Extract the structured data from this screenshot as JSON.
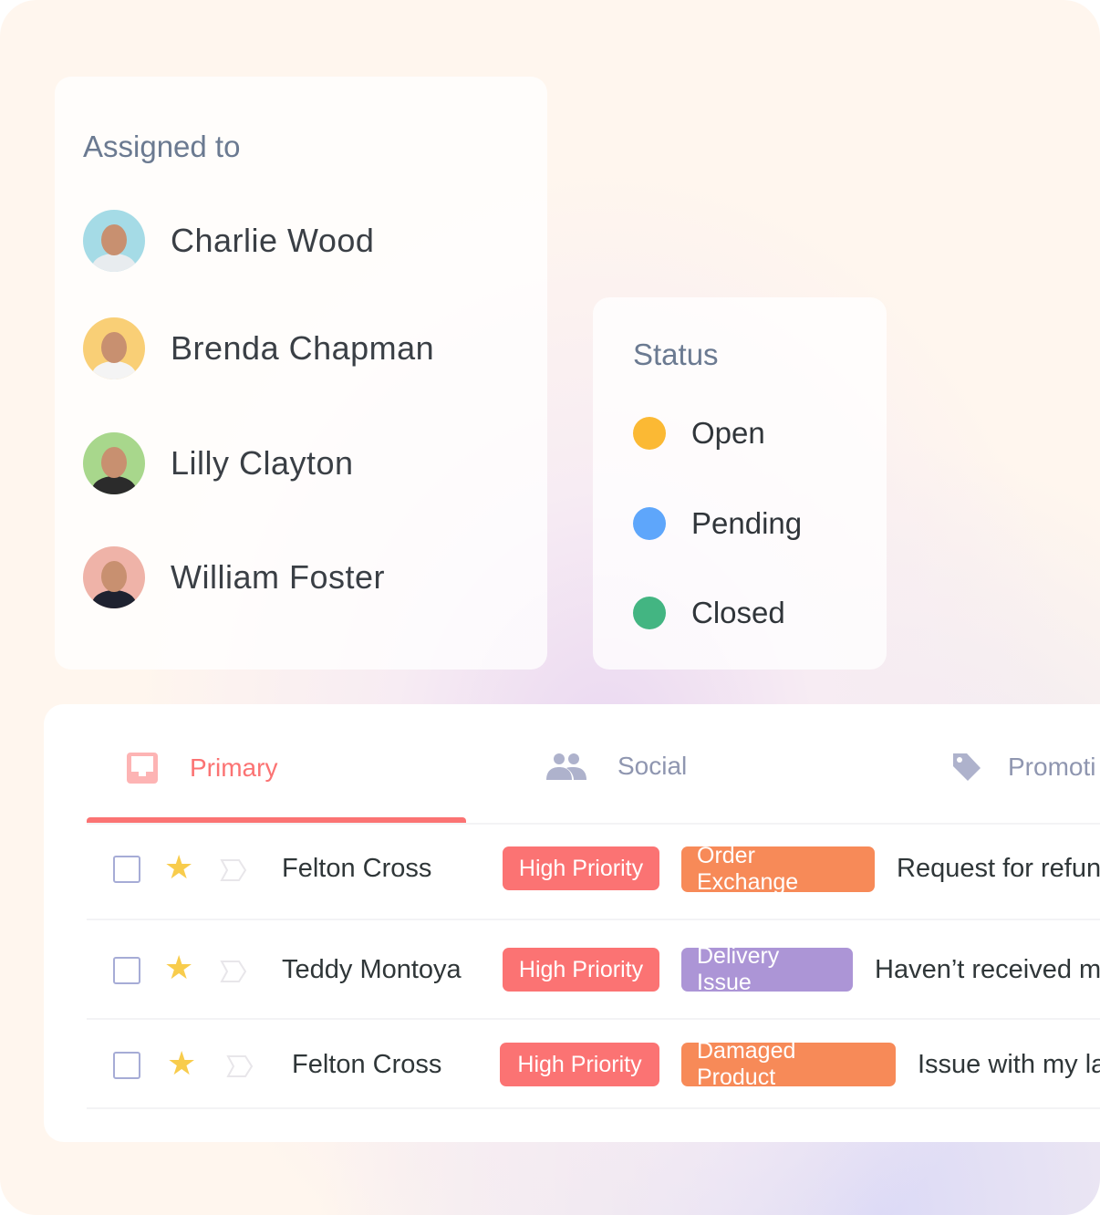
{
  "assigned": {
    "title": "Assigned to",
    "people": [
      {
        "name": "Charlie Wood",
        "bg": "#a5dbe6",
        "shirt": "#e8ecef"
      },
      {
        "name": "Brenda Chapman",
        "bg": "#f9cf76",
        "shirt": "#f4f4f4"
      },
      {
        "name": "Lilly Clayton",
        "bg": "#a8d78c",
        "shirt": "#2b2b2b"
      },
      {
        "name": "William Foster",
        "bg": "#efb3a8",
        "shirt": "#1e2230"
      }
    ]
  },
  "status": {
    "title": "Status",
    "items": [
      {
        "label": "Open",
        "color": "#fbb934"
      },
      {
        "label": "Pending",
        "color": "#5ea6fb"
      },
      {
        "label": "Closed",
        "color": "#43b582"
      }
    ]
  },
  "tabs": [
    {
      "label": "Primary",
      "icon": "inbox-icon",
      "active": true
    },
    {
      "label": "Social",
      "icon": "people-icon"
    },
    {
      "label": "Promoti",
      "icon": "tag-icon"
    }
  ],
  "emails": [
    {
      "sender": "Felton Cross",
      "starred": true,
      "tags": [
        {
          "label": "High Priority",
          "color": "#fb7373"
        },
        {
          "label": "Order Exchange",
          "color": "#f78a58"
        }
      ],
      "subject": "Request for refun"
    },
    {
      "sender": "Teddy Montoya",
      "starred": true,
      "tags": [
        {
          "label": "High Priority",
          "color": "#fb7373"
        },
        {
          "label": "Delivery Issue",
          "color": "#ac95d6"
        }
      ],
      "subject": "Haven’t received my"
    },
    {
      "sender": "Felton Cross",
      "starred": true,
      "tags": [
        {
          "label": "High Priority",
          "color": "#fb7373"
        },
        {
          "label": "Damaged Product",
          "color": "#f78a58"
        }
      ],
      "subject": "Issue with my la"
    }
  ]
}
